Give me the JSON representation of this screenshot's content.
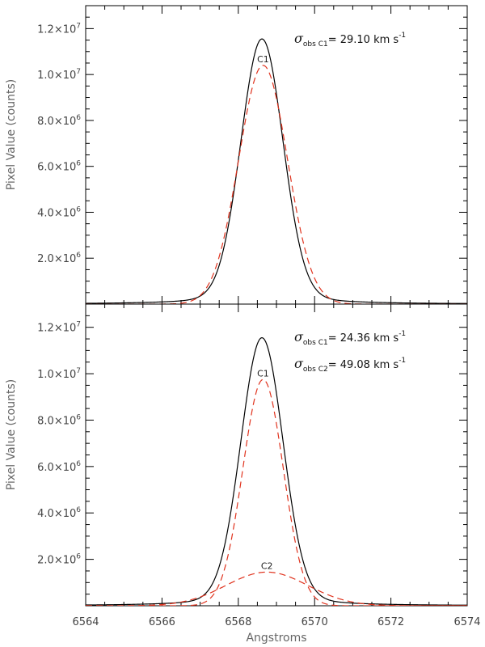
{
  "chart_data": [
    {
      "type": "line",
      "xlabel": "",
      "ylabel": "Pixel Value (counts)",
      "xlim": [
        6564,
        6574
      ],
      "ylim": [
        0,
        13000000
      ],
      "xticks": [
        "6564",
        "6566",
        "6568",
        "6570",
        "6572",
        "6574"
      ],
      "yticks": [
        {
          "mant": "2.0",
          "exp": "6",
          "value": 2000000
        },
        {
          "mant": "4.0",
          "exp": "6",
          "value": 4000000
        },
        {
          "mant": "6.0",
          "exp": "6",
          "value": 6000000
        },
        {
          "mant": "8.0",
          "exp": "6",
          "value": 8000000
        },
        {
          "mant": "1.0",
          "exp": "7",
          "value": 10000000
        },
        {
          "mant": "1.2",
          "exp": "7",
          "value": 12000000
        }
      ],
      "grid": false,
      "annotations": [
        {
          "sigma": "σ",
          "sub": "obs C1",
          "value": "= 29.10 km s",
          "sup": "-1"
        }
      ],
      "series": [
        {
          "label": "",
          "color": "#000000",
          "dash": "solid",
          "profile": "voigt",
          "amplitude": 11550000,
          "center": 6568.62,
          "sigma_A": 0.55,
          "gamma_A": 0.16
        },
        {
          "label": "C1",
          "color": "#e0331e",
          "dash": "dashed",
          "profile": "gauss",
          "amplitude": 10400000,
          "center": 6568.65,
          "sigma_A": 0.64
        }
      ]
    },
    {
      "type": "line",
      "xlabel": "Angstroms",
      "ylabel": "Pixel Value (counts)",
      "xlim": [
        6564,
        6574
      ],
      "ylim": [
        0,
        13000000
      ],
      "xticks": [
        "6564",
        "6566",
        "6568",
        "6570",
        "6572",
        "6574"
      ],
      "yticks": [
        {
          "mant": "2.0",
          "exp": "6",
          "value": 2000000
        },
        {
          "mant": "4.0",
          "exp": "6",
          "value": 4000000
        },
        {
          "mant": "6.0",
          "exp": "6",
          "value": 6000000
        },
        {
          "mant": "8.0",
          "exp": "6",
          "value": 8000000
        },
        {
          "mant": "1.0",
          "exp": "7",
          "value": 10000000
        },
        {
          "mant": "1.2",
          "exp": "7",
          "value": 12000000
        }
      ],
      "grid": false,
      "annotations": [
        {
          "sigma": "σ",
          "sub": "obs C1",
          "value": "= 24.36 km s",
          "sup": "-1"
        },
        {
          "sigma": "σ",
          "sub": "obs C2",
          "value": "= 49.08 km s",
          "sup": "-1"
        }
      ],
      "series": [
        {
          "label": "",
          "color": "#000000",
          "dash": "solid",
          "profile": "voigt",
          "amplitude": 11550000,
          "center": 6568.62,
          "sigma_A": 0.55,
          "gamma_A": 0.16
        },
        {
          "label": "C1",
          "color": "#e0331e",
          "dash": "dashed",
          "profile": "gauss",
          "amplitude": 9750000,
          "center": 6568.65,
          "sigma_A": 0.53
        },
        {
          "label": "C2",
          "color": "#e0331e",
          "dash": "dashed",
          "profile": "gauss",
          "amplitude": 1450000,
          "center": 6568.75,
          "sigma_A": 1.07
        }
      ]
    }
  ]
}
